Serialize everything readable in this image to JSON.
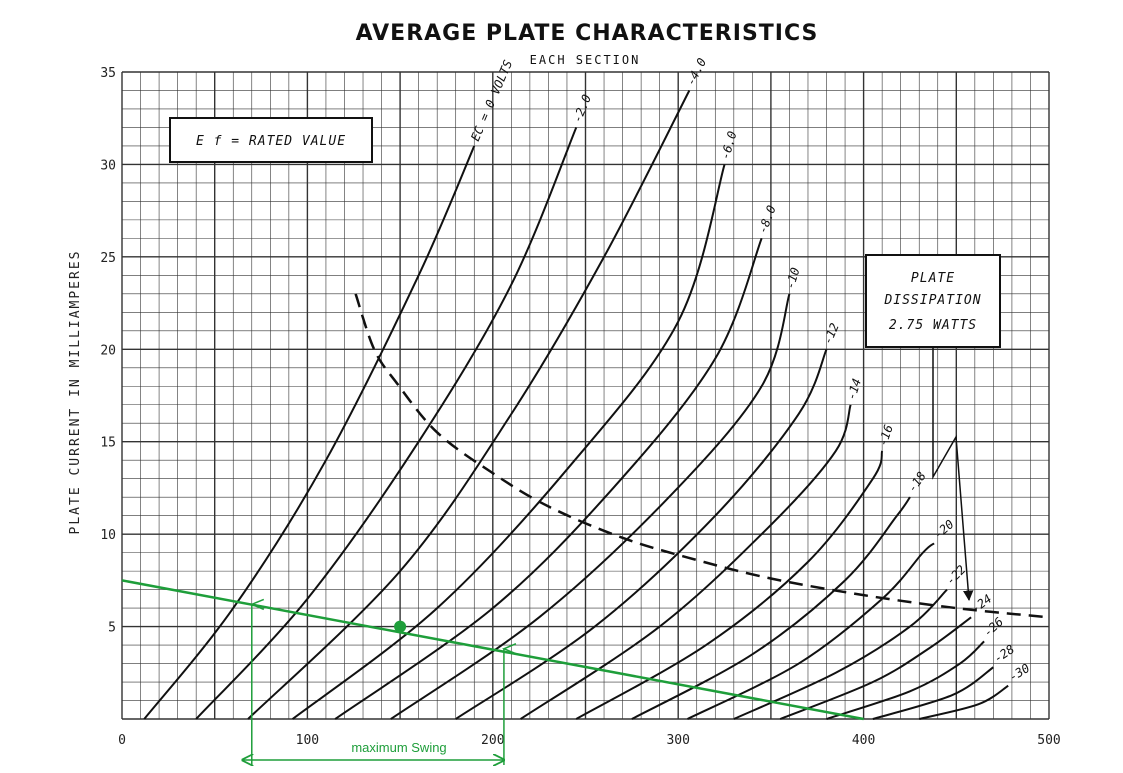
{
  "chart_data": {
    "type": "line",
    "title": "AVERAGE PLATE CHARACTERISTICS",
    "subtitle": "EACH SECTION",
    "xlabel": "",
    "ylabel": "PLATE CURRENT IN MILLIAMPERES",
    "xlim": [
      0,
      500
    ],
    "ylim": [
      0,
      35
    ],
    "x_ticks": [
      "0",
      "100",
      "200",
      "300",
      "400",
      "500"
    ],
    "y_ticks": [
      "5",
      "10",
      "15",
      "20",
      "25",
      "30",
      "35"
    ],
    "grid": true,
    "series": [
      {
        "name": "EC = 0 VOLTS",
        "points": [
          [
            12,
            0
          ],
          [
            60,
            6
          ],
          [
            110,
            14
          ],
          [
            160,
            24
          ],
          [
            190,
            31
          ]
        ]
      },
      {
        "name": "-2.0",
        "points": [
          [
            40,
            0
          ],
          [
            100,
            6.5
          ],
          [
            160,
            15
          ],
          [
            210,
            23.5
          ],
          [
            245,
            32
          ]
        ]
      },
      {
        "name": "-4.0",
        "points": [
          [
            68,
            0
          ],
          [
            150,
            8
          ],
          [
            210,
            16.5
          ],
          [
            260,
            25
          ],
          [
            306,
            34
          ]
        ]
      },
      {
        "name": "-6.0",
        "points": [
          [
            92,
            0
          ],
          [
            170,
            6
          ],
          [
            240,
            13.5
          ],
          [
            300,
            21.5
          ],
          [
            325,
            30
          ]
        ]
      },
      {
        "name": "-8.0",
        "points": [
          [
            115,
            0
          ],
          [
            200,
            6
          ],
          [
            265,
            12.5
          ],
          [
            320,
            19.5
          ],
          [
            345,
            26
          ]
        ]
      },
      {
        "name": "-10",
        "points": [
          [
            145,
            0
          ],
          [
            225,
            5.5
          ],
          [
            295,
            12
          ],
          [
            345,
            18
          ],
          [
            360,
            23
          ]
        ]
      },
      {
        "name": "-12",
        "points": [
          [
            180,
            0
          ],
          [
            255,
            5
          ],
          [
            320,
            11
          ],
          [
            365,
            16.5
          ],
          [
            380,
            20
          ]
        ]
      },
      {
        "name": "-14",
        "points": [
          [
            215,
            0
          ],
          [
            290,
            5
          ],
          [
            350,
            10.5
          ],
          [
            385,
            14.5
          ],
          [
            393,
            17
          ]
        ]
      },
      {
        "name": "-16",
        "points": [
          [
            245,
            0
          ],
          [
            315,
            4
          ],
          [
            370,
            8.5
          ],
          [
            405,
            13
          ],
          [
            410,
            14.5
          ]
        ]
      },
      {
        "name": "-18",
        "points": [
          [
            275,
            0
          ],
          [
            340,
            3.5
          ],
          [
            390,
            7.5
          ],
          [
            418,
            11
          ],
          [
            425,
            12
          ]
        ]
      },
      {
        "name": "-20",
        "points": [
          [
            305,
            0
          ],
          [
            365,
            3
          ],
          [
            410,
            6.5
          ],
          [
            432,
            9
          ],
          [
            438,
            9.5
          ]
        ]
      },
      {
        "name": "-22",
        "points": [
          [
            330,
            0
          ],
          [
            385,
            2.5
          ],
          [
            425,
            5
          ],
          [
            445,
            7
          ]
        ]
      },
      {
        "name": "-24",
        "points": [
          [
            355,
            0
          ],
          [
            405,
            2
          ],
          [
            435,
            3.8
          ],
          [
            458,
            5.5
          ]
        ]
      },
      {
        "name": "-26",
        "points": [
          [
            380,
            0
          ],
          [
            425,
            1.5
          ],
          [
            452,
            3
          ],
          [
            465,
            4.2
          ]
        ]
      },
      {
        "name": "-28",
        "points": [
          [
            405,
            0
          ],
          [
            448,
            1.3
          ],
          [
            470,
            2.8
          ]
        ]
      },
      {
        "name": "-30",
        "points": [
          [
            430,
            0
          ],
          [
            462,
            0.8
          ],
          [
            478,
            1.8
          ]
        ]
      }
    ],
    "dissipation_curve": {
      "label": [
        "PLATE",
        "DISSIPATION",
        "2.75 WATTS"
      ],
      "points": [
        [
          126,
          23
        ],
        [
          136,
          20
        ],
        [
          148,
          18.2
        ],
        [
          170,
          15.5
        ],
        [
          200,
          13.3
        ],
        [
          230,
          11.5
        ],
        [
          270,
          9.8
        ],
        [
          310,
          8.6
        ],
        [
          350,
          7.6
        ],
        [
          400,
          6.7
        ],
        [
          450,
          6
        ],
        [
          500,
          5.5
        ]
      ]
    },
    "annotations": {
      "filament_box": "E f = RATED VALUE",
      "load_line": {
        "color": "#1e9e3a",
        "points": [
          [
            0,
            7.5
          ],
          [
            400,
            0
          ]
        ]
      },
      "operating_point": {
        "x": 150,
        "y": 5
      },
      "swing_markers": [
        {
          "x": 70,
          "y": 6.2
        },
        {
          "x": 206,
          "y": 3.8
        }
      ],
      "swing_label": "maximum Swing",
      "swing_range": [
        65,
        206
      ]
    }
  }
}
